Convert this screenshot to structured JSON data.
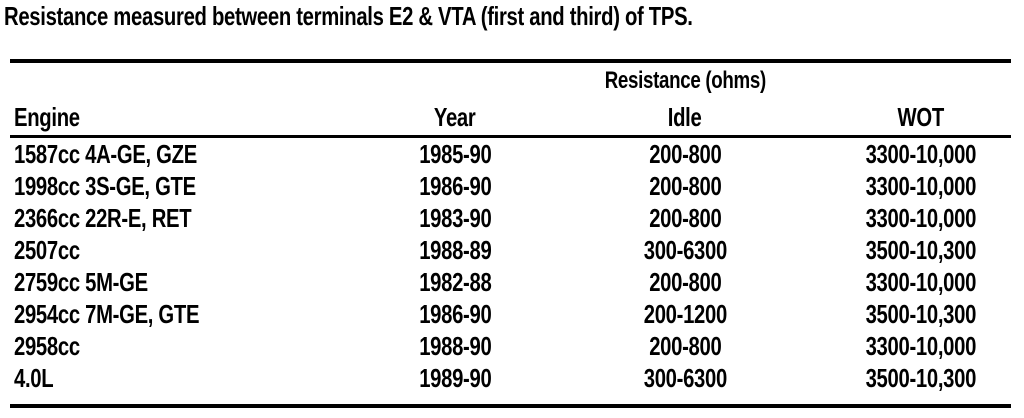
{
  "caption": "Resistance measured between terminals E2 & VTA (first and third) of TPS.",
  "table": {
    "group_header": "Resistance (ohms)",
    "columns": [
      "Engine",
      "Year",
      "Idle",
      "WOT"
    ],
    "rows": [
      {
        "engine": "1587cc 4A-GE, GZE",
        "year": "1985-90",
        "idle": "200-800",
        "wot": "3300-10,000"
      },
      {
        "engine": "1998cc 3S-GE, GTE",
        "year": "1986-90",
        "idle": "200-800",
        "wot": "3300-10,000"
      },
      {
        "engine": "2366cc 22R-E, RET",
        "year": "1983-90",
        "idle": "200-800",
        "wot": "3300-10,000"
      },
      {
        "engine": "2507cc",
        "year": "1988-89",
        "idle": "300-6300",
        "wot": "3500-10,300"
      },
      {
        "engine": "2759cc 5M-GE",
        "year": "1982-88",
        "idle": "200-800",
        "wot": "3300-10,000"
      },
      {
        "engine": "2954cc 7M-GE, GTE",
        "year": "1986-90",
        "idle": "200-1200",
        "wot": "3500-10,300"
      },
      {
        "engine": "2958cc",
        "year": "1988-90",
        "idle": "200-800",
        "wot": "3300-10,000"
      },
      {
        "engine": "4.0L",
        "year": "1989-90",
        "idle": "300-6300",
        "wot": "3500-10,300"
      }
    ]
  }
}
